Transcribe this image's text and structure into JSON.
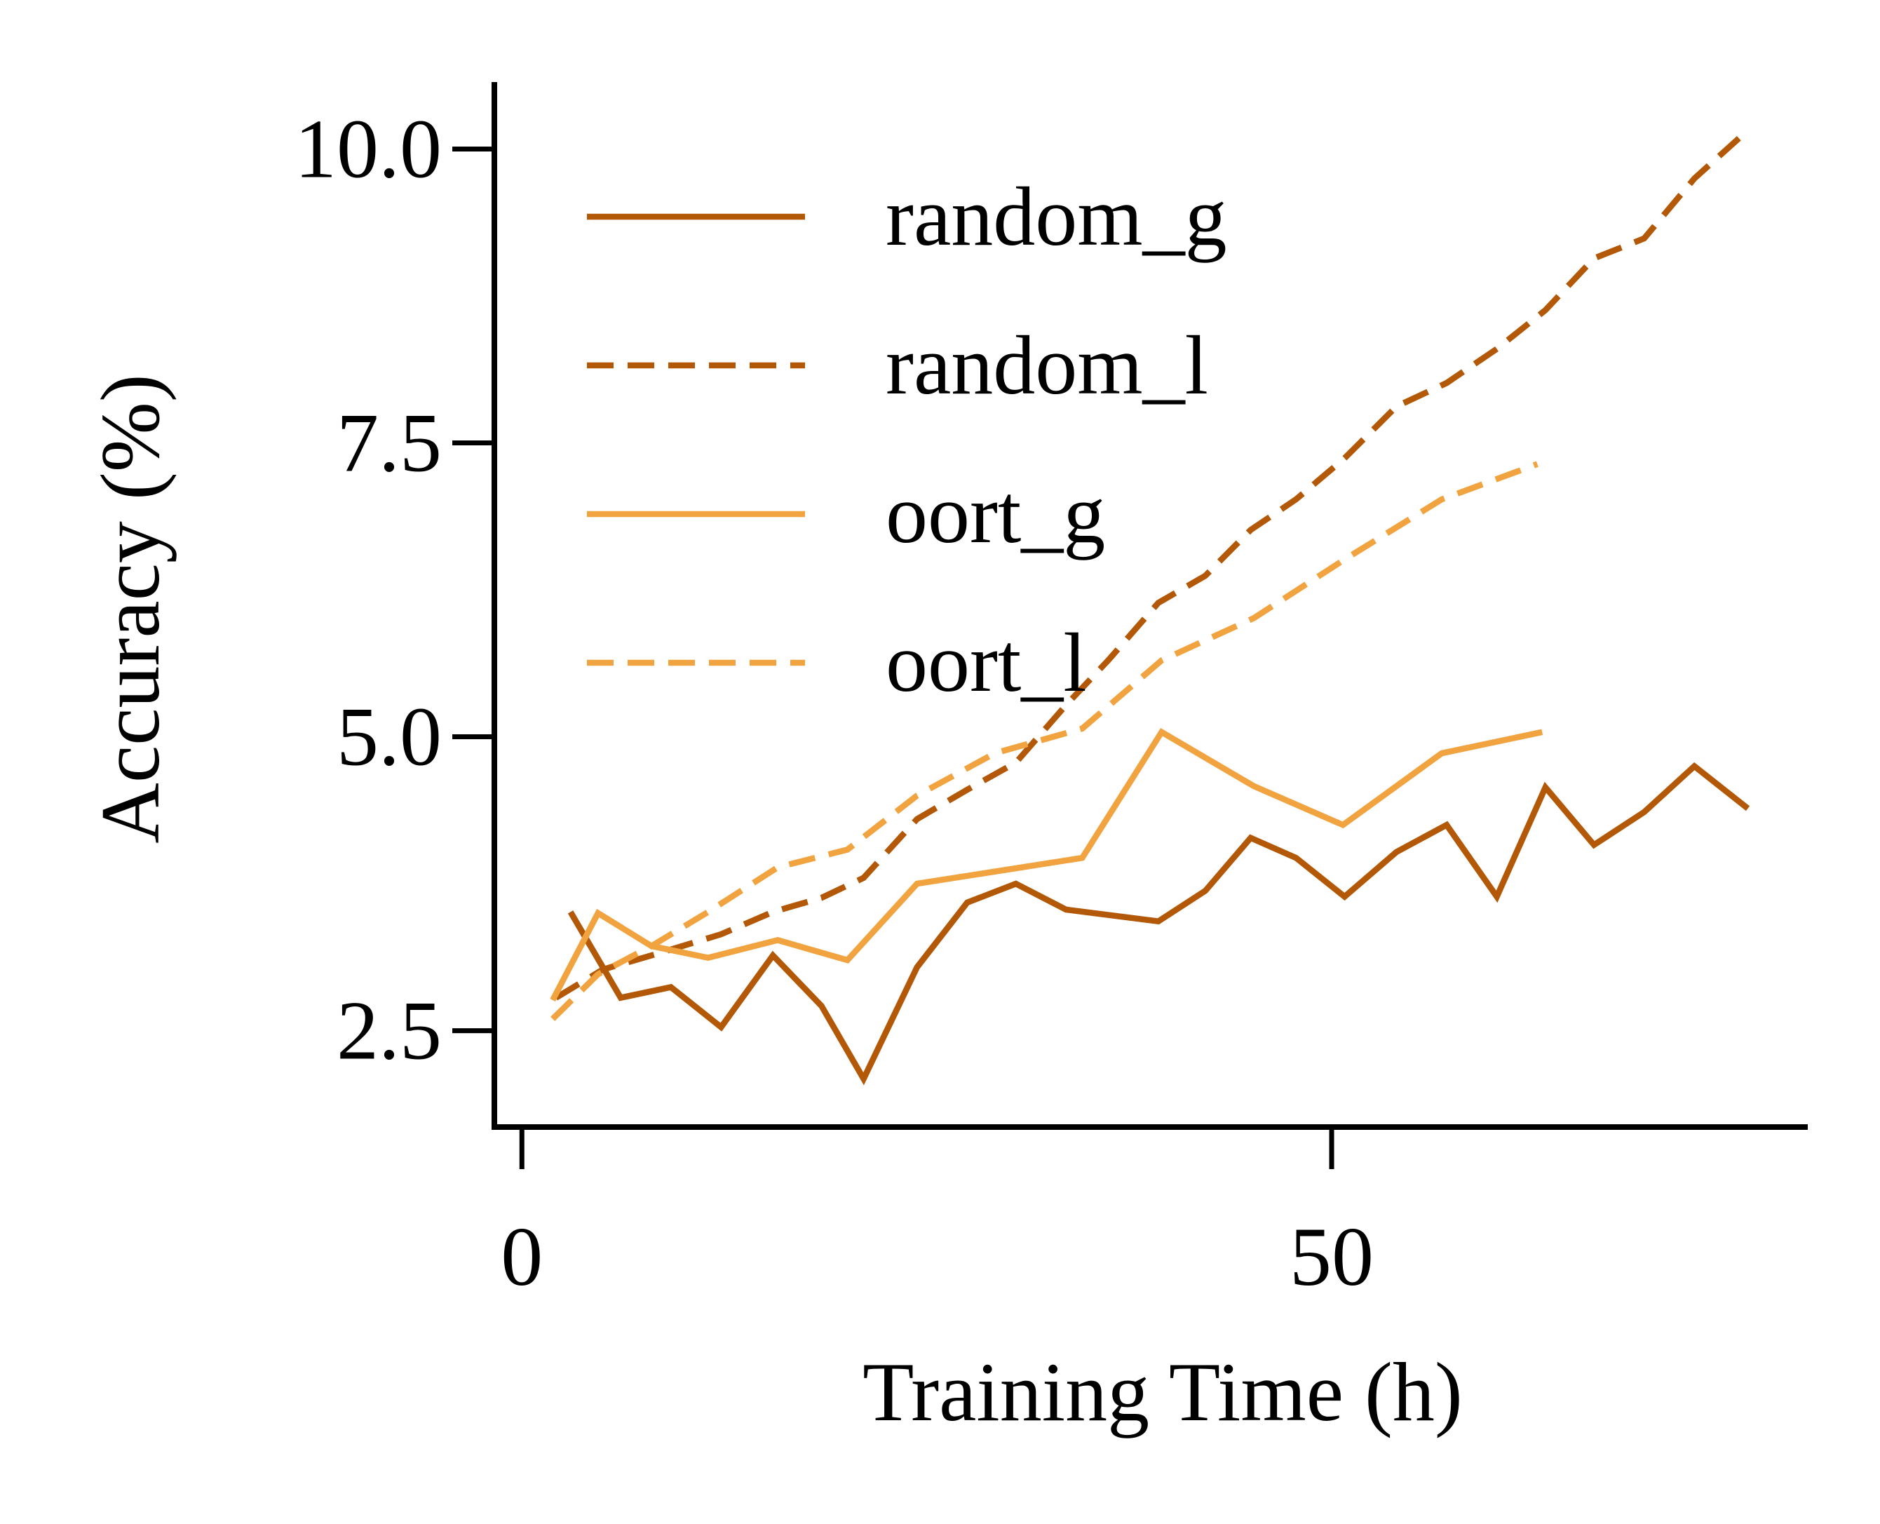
{
  "chart_data": {
    "type": "line",
    "xlabel": "Training Time (h)",
    "ylabel": "Accuracy (%)",
    "xlim": [
      -1.7,
      79.4
    ],
    "ylim": [
      1.68,
      10.57
    ],
    "xticks": [
      0,
      50
    ],
    "yticks": [
      {
        "value": 2.5,
        "label": "2.5"
      },
      {
        "value": 5,
        "label": "5.0"
      },
      {
        "value": 7.5,
        "label": "7.5"
      },
      {
        "value": 10,
        "label": "10.0"
      }
    ],
    "legend": "upper left",
    "series": [
      {
        "name": "random_g",
        "color": "#b35806",
        "linestyle": "solid",
        "x": [
          3.0,
          6.1,
          9.2,
          12.3,
          15.5,
          18.5,
          21.1,
          24.4,
          27.5,
          30.5,
          33.6,
          39.3,
          42.2,
          45.0,
          47.8,
          50.8,
          54.0,
          57.1,
          60.2,
          63.2,
          66.2,
          69.3,
          72.4,
          75.7
        ],
        "values": [
          3.51,
          2.78,
          2.87,
          2.53,
          3.14,
          2.71,
          2.09,
          3.04,
          3.59,
          3.75,
          3.53,
          3.43,
          3.69,
          4.14,
          3.97,
          3.64,
          4.02,
          4.25,
          3.64,
          4.57,
          4.08,
          4.36,
          4.75,
          4.39
        ]
      },
      {
        "name": "random_l",
        "color": "#b35806",
        "linestyle": "dashed",
        "x": [
          2.1,
          5.0,
          8.0,
          12.3,
          15.5,
          18.5,
          21.1,
          24.4,
          27.5,
          30.5,
          33.6,
          36.2,
          39.3,
          42.2,
          45.0,
          47.8,
          50.8,
          54.0,
          57.1,
          60.2,
          63.2,
          66.2,
          69.3,
          72.4,
          75.7
        ],
        "values": [
          2.78,
          3.02,
          3.14,
          3.32,
          3.51,
          3.63,
          3.8,
          4.3,
          4.55,
          4.78,
          5.27,
          5.65,
          6.14,
          6.37,
          6.76,
          7.02,
          7.37,
          7.81,
          8.01,
          8.3,
          8.63,
          9.07,
          9.24,
          9.75,
          10.16
        ]
      },
      {
        "name": "oort_g",
        "color": "#f1a340",
        "linestyle": "solid",
        "x": [
          1.9,
          4.7,
          8.0,
          11.5,
          15.8,
          20.1,
          24.4,
          34.6,
          39.5,
          45.2,
          50.7,
          56.8,
          63.0
        ],
        "values": [
          2.76,
          3.5,
          3.22,
          3.12,
          3.27,
          3.1,
          3.75,
          3.97,
          5.04,
          4.58,
          4.25,
          4.86,
          5.04
        ]
      },
      {
        "name": "oort_l",
        "color": "#f1a340",
        "linestyle": "dashed",
        "x": [
          1.9,
          4.7,
          8.0,
          11.5,
          15.8,
          20.1,
          24.4,
          29.2,
          34.6,
          39.5,
          45.2,
          50.7,
          56.8,
          62.7
        ],
        "values": [
          2.6,
          2.98,
          3.22,
          3.51,
          3.89,
          4.04,
          4.5,
          4.86,
          5.07,
          5.65,
          6.01,
          6.5,
          7.02,
          7.32
        ]
      }
    ]
  }
}
